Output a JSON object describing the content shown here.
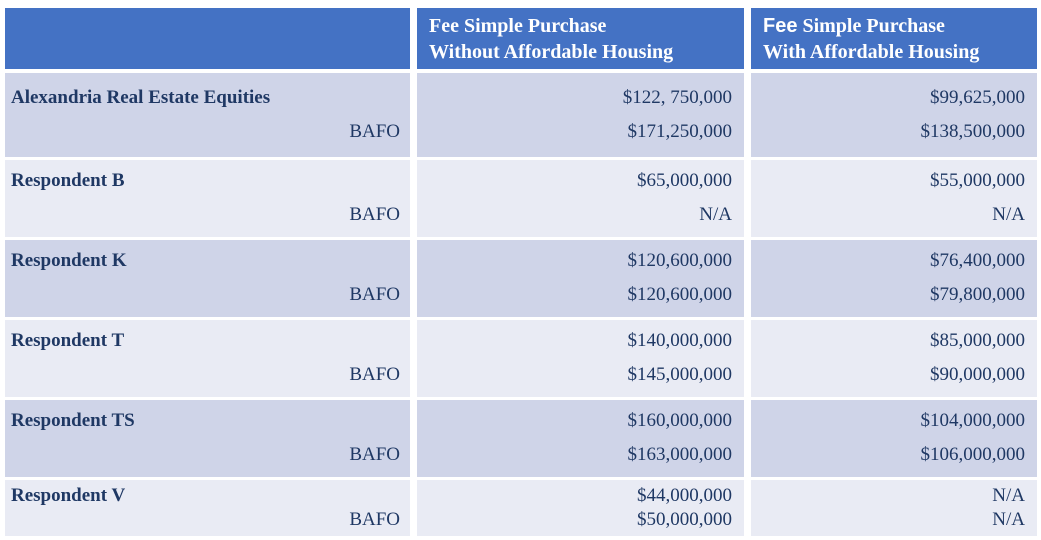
{
  "table": {
    "header": {
      "col_without": {
        "line1": "Fee Simple Purchase",
        "line2": "Without Affordable Housing"
      },
      "col_with": {
        "fee_bold": "Fee",
        "line1_rest": "Simple Purchase",
        "line2": "With Affordable Housing"
      }
    },
    "rows": [
      {
        "name": "Alexandria Real Estate Equities",
        "bafo_label": "BAFO",
        "without_initial": "$122, 750,000",
        "without_bafo": "$171,250,000",
        "with_initial": "$99,625,000",
        "with_bafo": "$138,500,000"
      },
      {
        "name": "Respondent B",
        "bafo_label": "BAFO",
        "without_initial": "$65,000,000",
        "without_bafo": "N/A",
        "with_initial": "$55,000,000",
        "with_bafo": "N/A"
      },
      {
        "name": "Respondent K",
        "bafo_label": "BAFO",
        "without_initial": "$120,600,000",
        "without_bafo": "$120,600,000",
        "with_initial": "$76,400,000",
        "with_bafo": "$79,800,000"
      },
      {
        "name": "Respondent T",
        "bafo_label": "BAFO",
        "without_initial": "$140,000,000",
        "without_bafo": "$145,000,000",
        "with_initial": "$85,000,000",
        "with_bafo": "$90,000,000"
      },
      {
        "name": "Respondent TS",
        "bafo_label": "BAFO",
        "without_initial": "$160,000,000",
        "without_bafo": "$163,000,000",
        "with_initial": "$104,000,000",
        "with_bafo": "$106,000,000"
      },
      {
        "name": "Respondent V",
        "bafo_label": "BAFO",
        "without_initial": "$44,000,000",
        "without_bafo": "$50,000,000",
        "with_initial": "N/A",
        "with_bafo": "N/A"
      }
    ]
  },
  "colors": {
    "header_blue": "#4472C4",
    "row_dark": "#CFD4E8",
    "row_light": "#E9EBF4",
    "text_navy": "#1F3864",
    "header_text": "#FFFFFF"
  }
}
